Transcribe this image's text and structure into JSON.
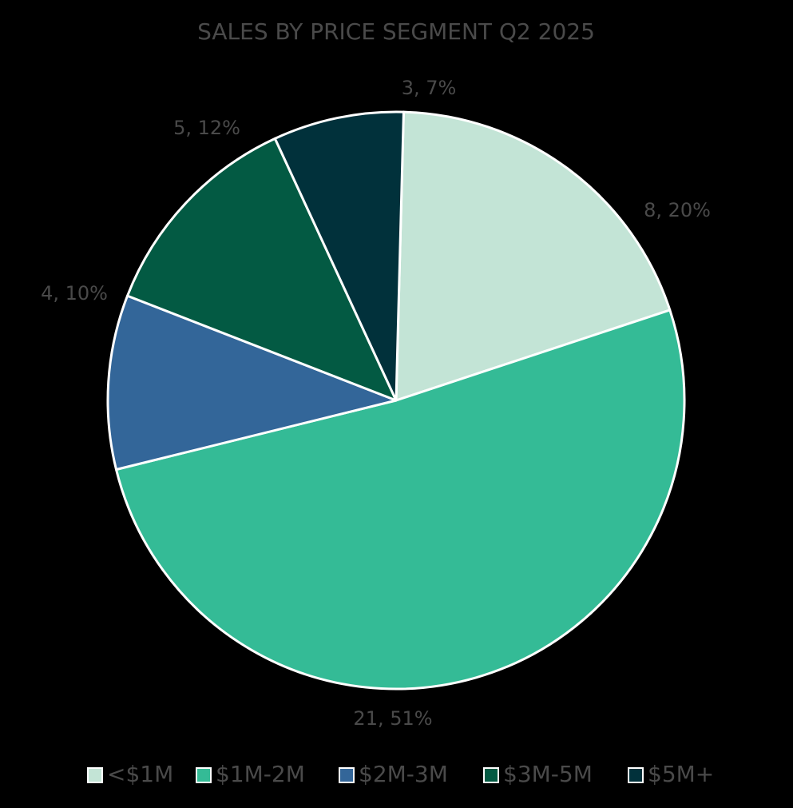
{
  "chart_data": {
    "type": "pie",
    "title": "SALES BY PRICE SEGMENT Q2 2025",
    "start_angle_deg": 88.5,
    "direction": "clockwise",
    "legend_position": "bottom",
    "slices": [
      {
        "name": "<$1M",
        "value": 8,
        "percent": "20%",
        "label": "8, 20%",
        "color": "#c3e4d6"
      },
      {
        "name": "$1M-2M",
        "value": 21,
        "percent": "51%",
        "label": "21, 51%",
        "color": "#34bb96"
      },
      {
        "name": "$2M-3M",
        "value": 4,
        "percent": "10%",
        "label": "4, 10%",
        "color": "#336699"
      },
      {
        "name": "$3M-5M",
        "value": 5,
        "percent": "12%",
        "label": "5, 12%",
        "color": "#035a43"
      },
      {
        "name": "$5M+",
        "value": 3,
        "percent": "7%",
        "label": "3, 7%",
        "color": "#01313b"
      }
    ]
  }
}
